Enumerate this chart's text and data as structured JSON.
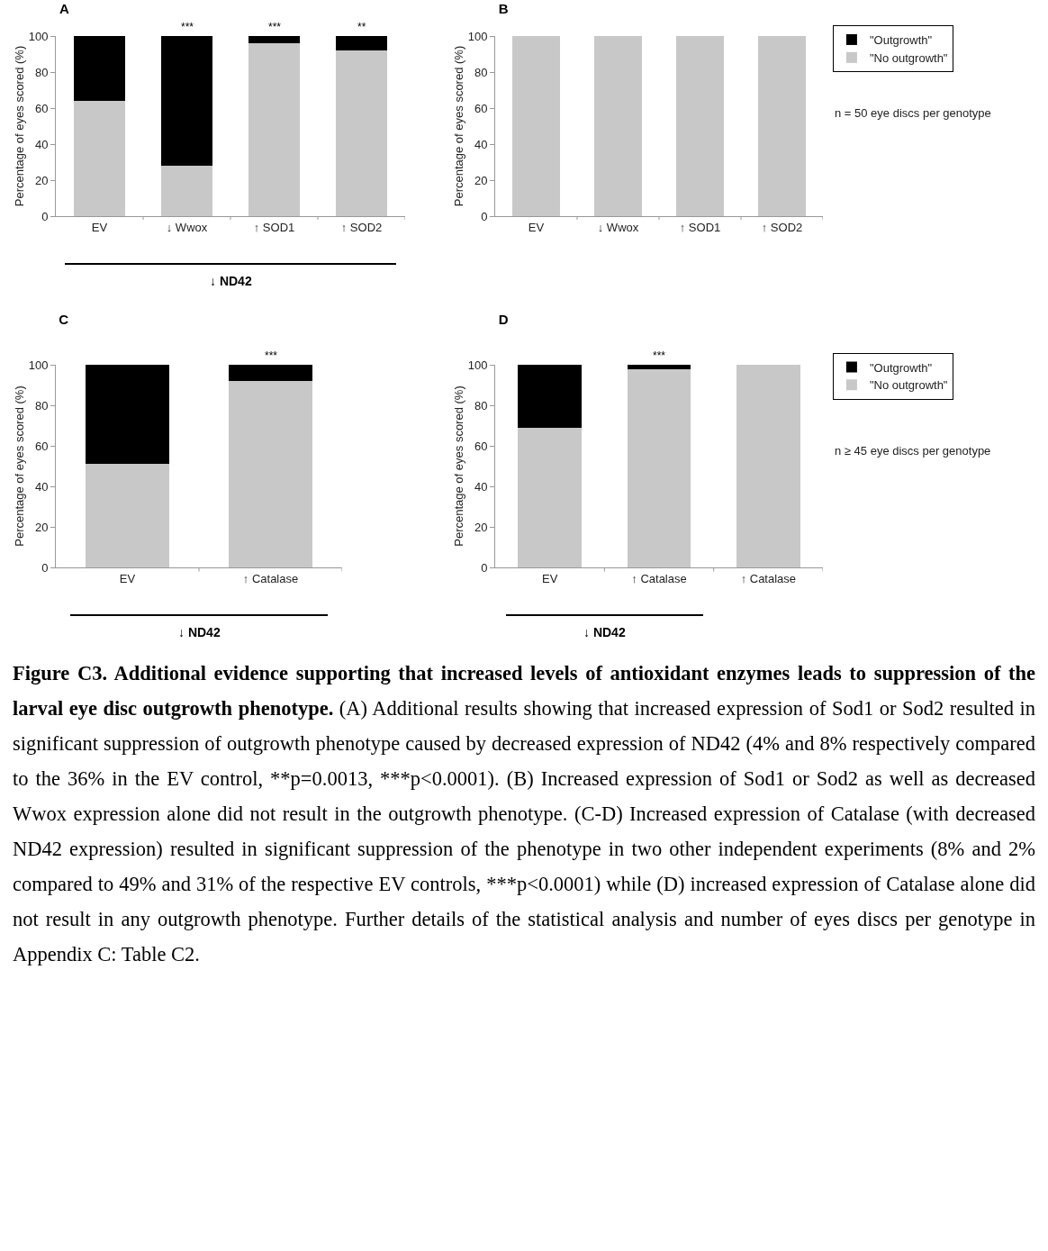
{
  "chart_data": [
    {
      "type": "bar",
      "title": "A",
      "stacked": true,
      "ylabel": "Percentage of eyes scored (%)",
      "categories": [
        "EV",
        "↓ Wwox",
        "↑ SOD1",
        "↑ SOD2"
      ],
      "ylim": [
        0,
        100
      ],
      "yticks": [
        0,
        20,
        40,
        60,
        80,
        100
      ],
      "grid": false,
      "legend": false,
      "series": [
        {
          "color": "#c8c8c8",
          "values": [
            64,
            28,
            96,
            92
          ]
        },
        {
          "color": "#000000",
          "values": [
            36,
            72,
            4,
            8
          ]
        }
      ],
      "annotations": [
        "↓ ND42",
        {
          "text": "***",
          "x": "↓ Wwox",
          "y": 100
        },
        {
          "text": "***",
          "x": "↑ SOD1",
          "y": 100
        },
        {
          "text": "**",
          "x": "↑ SOD2",
          "y": 100
        }
      ]
    },
    {
      "type": "bar",
      "title": "B",
      "stacked": true,
      "ylabel": "Percentage of eyes scored (%)",
      "categories": [
        "EV",
        "↓ Wwox",
        "↑ SOD1",
        "↑ SOD2"
      ],
      "ylim": [
        0,
        100
      ],
      "yticks": [
        0,
        20,
        40,
        60,
        80,
        100
      ],
      "grid": false,
      "legend": "top right",
      "series": [
        {
          "name": "\"No outgrowth\"",
          "color": "#c8c8c8",
          "values": [
            100,
            100,
            100,
            100
          ]
        },
        {
          "name": "\"Outgrowth\"",
          "color": "#000000",
          "values": [
            0,
            0,
            0,
            0
          ]
        }
      ],
      "annotations": [
        "n = 50 eye discs per genotype"
      ]
    },
    {
      "type": "bar",
      "title": "C",
      "stacked": true,
      "ylabel": "Percentage of eyes scored (%)",
      "categories": [
        "EV",
        "↑ Catalase"
      ],
      "ylim": [
        0,
        100
      ],
      "yticks": [
        0,
        20,
        40,
        60,
        80,
        100
      ],
      "grid": false,
      "legend": false,
      "series": [
        {
          "color": "#c8c8c8",
          "values": [
            51,
            92
          ]
        },
        {
          "color": "#000000",
          "values": [
            49,
            8
          ]
        }
      ],
      "annotations": [
        "↓ ND42",
        {
          "text": "***",
          "x": "↑ Catalase",
          "y": 100
        }
      ]
    },
    {
      "type": "bar",
      "title": "D",
      "stacked": true,
      "ylabel": "Percentage of eyes scored (%)",
      "categories": [
        "EV",
        "↑ Catalase",
        "↑ Catalase"
      ],
      "ylim": [
        0,
        100
      ],
      "yticks": [
        0,
        20,
        40,
        60,
        80,
        100
      ],
      "grid": false,
      "legend": "top right",
      "series": [
        {
          "name": "\"No outgrowth\"",
          "color": "#c8c8c8",
          "values": [
            69,
            98,
            100
          ]
        },
        {
          "name": "\"Outgrowth\"",
          "color": "#000000",
          "values": [
            31,
            2,
            0
          ]
        }
      ],
      "annotations": [
        "↓ ND42",
        {
          "text": "***",
          "x": "↑ Catalase",
          "y": 100
        },
        "n ≥ 45 eye discs per genotype"
      ]
    },
    {
      "type": "other",
      "title": "Figure C3. Additional evidence supporting that increased levels of antioxidant enzymes leads to suppression of the larval eye disc outgrowth phenotype.",
      "annotations": [
        "(A) Additional results showing that increased expression of Sod1 or Sod2 resulted in significant suppression of outgrowth phenotype caused by decreased expression of ND42 (4% and 8% respectively compared to the 36% in the EV control, **p=0.0013, ***p<0.0001). (B) Increased expression of Sod1 or Sod2 as well as decreased Wwox expression alone did not result in the outgrowth phenotype. (C-D) Increased expression of Catalase (with decreased ND42 expression) resulted in significant suppression of the phenotype in two other independent experiments (8% and 2% compared to 49% and 31% of the respective EV controls, ***p<0.0001) while (D) increased expression of Catalase alone did not result in any outgrowth phenotype. Further details of the statistical analysis and number of eyes discs per genotype in Appendix C: Table C2."
      ]
    }
  ]
}
